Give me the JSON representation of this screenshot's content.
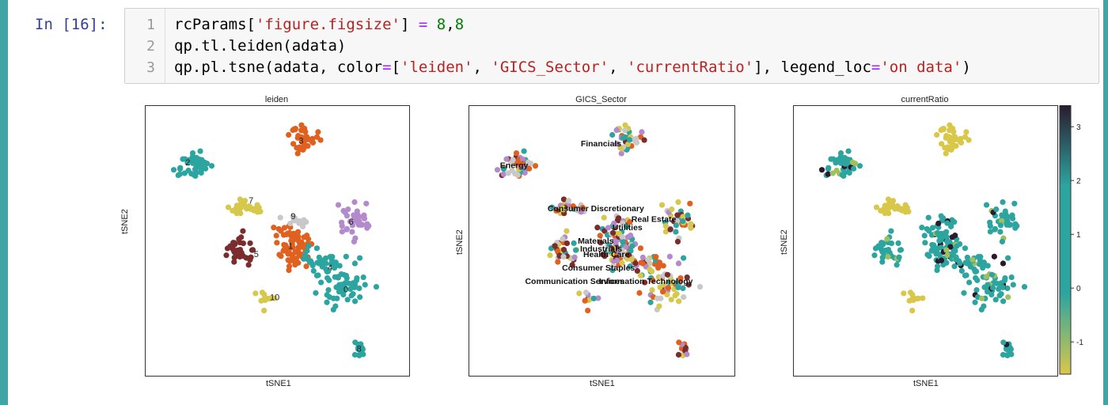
{
  "cell": {
    "prompt": "In [16]:",
    "line_numbers": [
      "1",
      "2",
      "3"
    ],
    "lines": [
      {
        "tokens": [
          [
            "rcParams[",
            ""
          ],
          [
            "'figure.figsize'",
            "str"
          ],
          [
            "] ",
            ""
          ],
          [
            "=",
            "op"
          ],
          [
            " ",
            ""
          ],
          [
            "8",
            "num"
          ],
          [
            ",",
            ""
          ],
          [
            "8",
            "num"
          ]
        ]
      },
      {
        "tokens": [
          [
            "qp.tl.leiden(adata)",
            ""
          ]
        ]
      },
      {
        "tokens": [
          [
            "qp.pl.tsne(adata, color",
            ""
          ],
          [
            "=",
            "op"
          ],
          [
            "[",
            ""
          ],
          [
            "'leiden'",
            "str"
          ],
          [
            ", ",
            ""
          ],
          [
            "'GICS_Sector'",
            "str"
          ],
          [
            ", ",
            ""
          ],
          [
            "'currentRatio'",
            "str"
          ],
          [
            "], legend_loc",
            ""
          ],
          [
            "=",
            "op"
          ],
          [
            "'on data'",
            "str"
          ],
          [
            ")",
            ""
          ]
        ]
      }
    ]
  },
  "panels": [
    {
      "title": "leiden",
      "xlabel": "tSNE1",
      "ylabel": "tSNE2"
    },
    {
      "title": "GICS_Sector",
      "xlabel": "tSNE1",
      "ylabel": "tSNE2"
    },
    {
      "title": "currentRatio",
      "xlabel": "tSNE1",
      "ylabel": "tSNE2"
    }
  ],
  "chart_data": [
    {
      "type": "scatter",
      "title": "leiden",
      "xlabel": "tSNE1",
      "ylabel": "tSNE2",
      "legend_loc": "on data",
      "cluster_labels": [
        "0",
        "1",
        "2",
        "3",
        "4",
        "5",
        "6",
        "7",
        "8",
        "9",
        "10"
      ],
      "cluster_colors": [
        "#2ca5a0",
        "#e0601f",
        "#2ca5a0",
        "#e0601f",
        "#2ca5a0",
        "#7b2c2c",
        "#b38acb",
        "#d6c84a",
        "#2ca5a0",
        "#c8c8c8",
        "#d6c84a"
      ]
    },
    {
      "type": "scatter",
      "title": "GICS_Sector",
      "xlabel": "tSNE1",
      "ylabel": "tSNE2",
      "legend_loc": "on data",
      "category_labels": [
        "Financials",
        "Energy",
        "Consumer Discretionary",
        "Real Estate",
        "Utilities",
        "Materials",
        "Industrials",
        "Health Care",
        "Consumer Staples",
        "Communication Services",
        "Information Technology"
      ]
    },
    {
      "type": "scatter",
      "title": "currentRatio",
      "xlabel": "tSNE1",
      "ylabel": "tSNE2",
      "colorbar": {
        "ticks": [
          "3",
          "2",
          "1",
          "0",
          "-1"
        ],
        "range": [
          -1.6,
          3.4
        ],
        "colors": [
          "#d9c74a",
          "#2ca5a0",
          "#2a1b2e"
        ]
      }
    }
  ]
}
